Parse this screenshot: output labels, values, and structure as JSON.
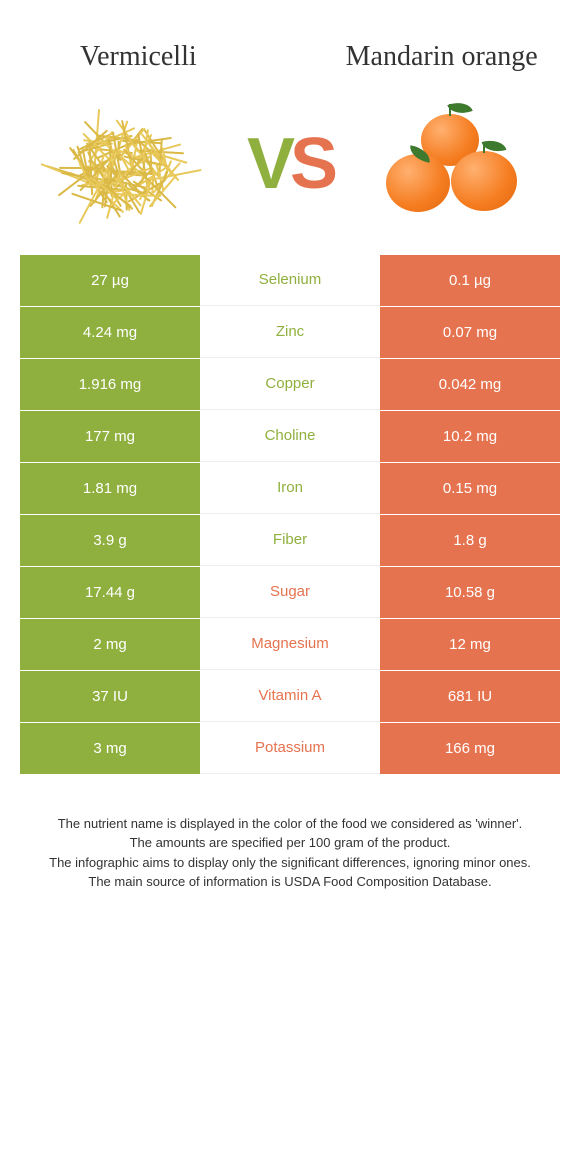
{
  "header": {
    "left_title": "Vermicelli",
    "right_title": "Mandarin orange"
  },
  "vs": {
    "v": "V",
    "s": "S"
  },
  "colors": {
    "left": "#8fb03e",
    "right": "#e6734f",
    "left_text": "#8fb03e",
    "right_text": "#e6734f"
  },
  "rows": [
    {
      "nutrient": "Selenium",
      "left": "27 µg",
      "right": "0.1 µg",
      "winner": "left"
    },
    {
      "nutrient": "Zinc",
      "left": "4.24 mg",
      "right": "0.07 mg",
      "winner": "left"
    },
    {
      "nutrient": "Copper",
      "left": "1.916 mg",
      "right": "0.042 mg",
      "winner": "left"
    },
    {
      "nutrient": "Choline",
      "left": "177 mg",
      "right": "10.2 mg",
      "winner": "left"
    },
    {
      "nutrient": "Iron",
      "left": "1.81 mg",
      "right": "0.15 mg",
      "winner": "left"
    },
    {
      "nutrient": "Fiber",
      "left": "3.9 g",
      "right": "1.8 g",
      "winner": "left"
    },
    {
      "nutrient": "Sugar",
      "left": "17.44 g",
      "right": "10.58 g",
      "winner": "right"
    },
    {
      "nutrient": "Magnesium",
      "left": "2 mg",
      "right": "12 mg",
      "winner": "right"
    },
    {
      "nutrient": "Vitamin A",
      "left": "37 IU",
      "right": "681 IU",
      "winner": "right"
    },
    {
      "nutrient": "Potassium",
      "left": "3 mg",
      "right": "166 mg",
      "winner": "right"
    }
  ],
  "footer": {
    "line1": "The nutrient name is displayed in the color of the food we considered as 'winner'.",
    "line2": "The amounts are specified per 100 gram of the product.",
    "line3": "The infographic aims to display only the significant differences, ignoring minor ones.",
    "line4": "The main source of information is USDA Food Composition Database."
  }
}
